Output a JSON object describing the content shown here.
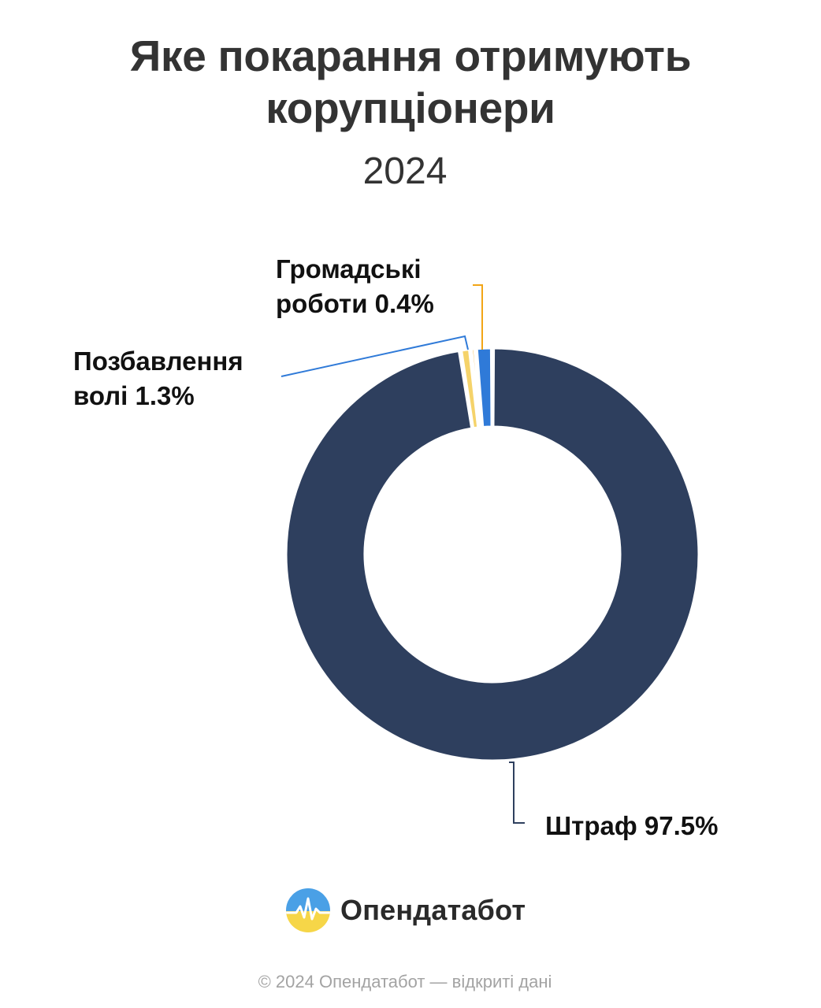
{
  "header": {
    "title_line1": "Яке покарання отримують",
    "title_line2": "корупціонери",
    "subtitle": "2024"
  },
  "chart_data": {
    "type": "pie",
    "variant": "donut",
    "slices": [
      {
        "label_line1": "Штраф",
        "label_line2": "",
        "value_text": "97.5%",
        "value": 97.5,
        "color": "#2e3f5e"
      },
      {
        "label_line1": "Позбавлення",
        "label_line2": "волі",
        "value_text": "1.3%",
        "value": 1.3,
        "color": "#2f7ad8"
      },
      {
        "label_line1": "Громадські",
        "label_line2": "роботи",
        "value_text": "0.4%",
        "value": 0.4,
        "color": "#f2a516"
      },
      {
        "label_line1": "",
        "label_line2": "",
        "value_text": "",
        "value": 0.8,
        "color": "#f5d36a"
      }
    ]
  },
  "brand": {
    "name": "Опендатабот",
    "logo_icon": "sun-over-field-logo-icon"
  },
  "footer": {
    "copyright": "© 2024 Опендатабот — відкриті дані"
  }
}
